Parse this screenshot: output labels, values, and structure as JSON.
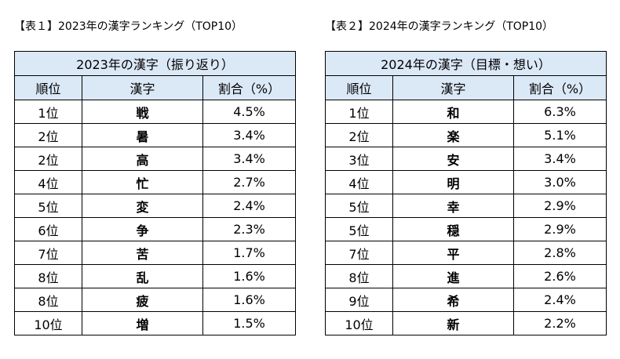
{
  "table1": {
    "caption": "【表１】2023年の漢字ランキング（TOP10）",
    "title": "2023年の漢字（振り返り）",
    "headers": [
      "順位",
      "漢字",
      "割合（%）"
    ],
    "rows": [
      {
        "rank": "1位",
        "kanji": "戦",
        "share": "4.5%"
      },
      {
        "rank": "2位",
        "kanji": "暑",
        "share": "3.4%"
      },
      {
        "rank": "2位",
        "kanji": "高",
        "share": "3.4%"
      },
      {
        "rank": "4位",
        "kanji": "忙",
        "share": "2.7%"
      },
      {
        "rank": "5位",
        "kanji": "変",
        "share": "2.4%"
      },
      {
        "rank": "6位",
        "kanji": "争",
        "share": "2.3%"
      },
      {
        "rank": "7位",
        "kanji": "苦",
        "share": "1.7%"
      },
      {
        "rank": "8位",
        "kanji": "乱",
        "share": "1.6%"
      },
      {
        "rank": "8位",
        "kanji": "疲",
        "share": "1.6%"
      },
      {
        "rank": "10位",
        "kanji": "増",
        "share": "1.5%"
      }
    ]
  },
  "table2": {
    "caption": "【表２】2024年の漢字ランキング（TOP10）",
    "title": "2024年の漢字（目標・想い）",
    "headers": [
      "順位",
      "漢字",
      "割合（%）"
    ],
    "rows": [
      {
        "rank": "1位",
        "kanji": "和",
        "share": "6.3%"
      },
      {
        "rank": "2位",
        "kanji": "楽",
        "share": "5.1%"
      },
      {
        "rank": "3位",
        "kanji": "安",
        "share": "3.4%"
      },
      {
        "rank": "4位",
        "kanji": "明",
        "share": "3.0%"
      },
      {
        "rank": "5位",
        "kanji": "幸",
        "share": "2.9%"
      },
      {
        "rank": "5位",
        "kanji": "穏",
        "share": "2.9%"
      },
      {
        "rank": "7位",
        "kanji": "平",
        "share": "2.8%"
      },
      {
        "rank": "8位",
        "kanji": "進",
        "share": "2.6%"
      },
      {
        "rank": "9位",
        "kanji": "希",
        "share": "2.4%"
      },
      {
        "rank": "10位",
        "kanji": "新",
        "share": "2.2%"
      }
    ]
  },
  "colors": {
    "header_fill": "#dbe8f6",
    "border": "#000000"
  }
}
